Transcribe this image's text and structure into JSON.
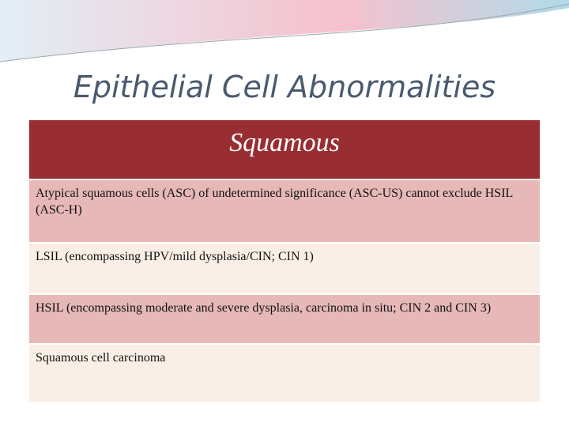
{
  "header": {
    "title": "Epithelial Cell Abnormalities"
  },
  "table": {
    "heading": "Squamous",
    "rows": [
      "Atypical squamous cells (ASC) of undetermined significance (ASC-US) cannot exclude HSIL (ASC-H)",
      "LSIL (encompassing HPV/mild dysplasia/CIN; CIN 1)",
      "HSIL (encompassing moderate and severe dysplasia, carcinoma in situ; CIN 2 and CIN 3)",
      "Squamous cell carcinoma"
    ]
  }
}
